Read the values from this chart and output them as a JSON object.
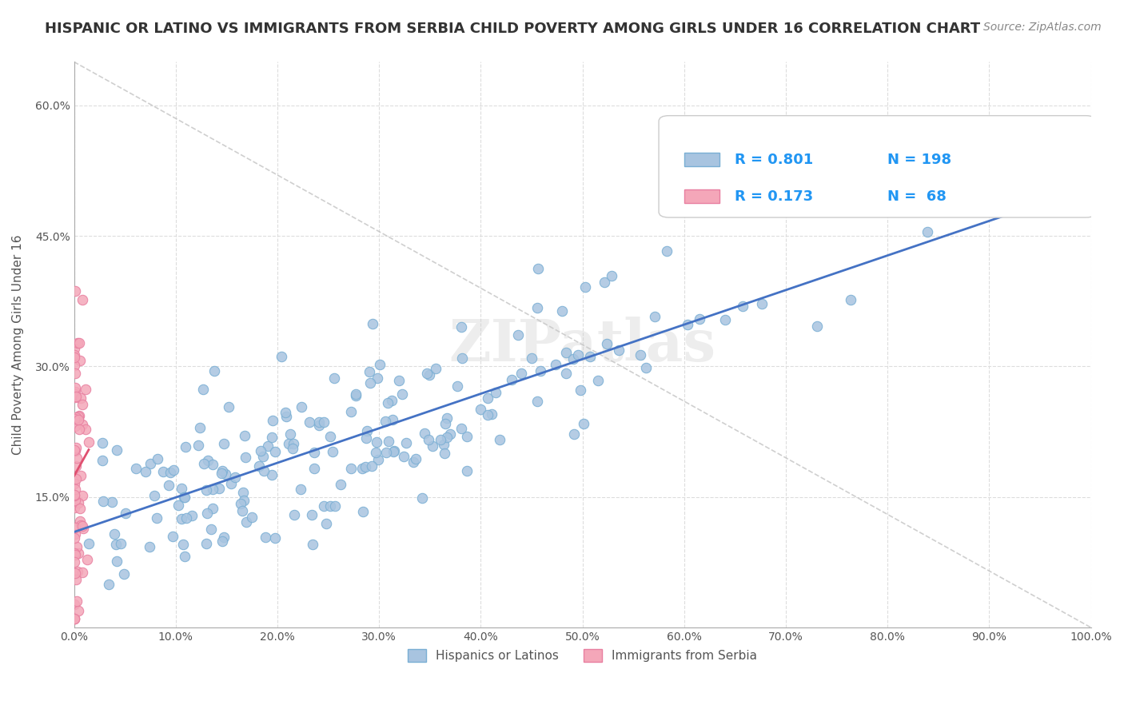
{
  "title": "HISPANIC OR LATINO VS IMMIGRANTS FROM SERBIA CHILD POVERTY AMONG GIRLS UNDER 16 CORRELATION CHART",
  "source_text": "Source: ZipAtlas.com",
  "xlabel": "",
  "ylabel": "Child Poverty Among Girls Under 16",
  "xlim": [
    0,
    1.0
  ],
  "ylim": [
    0,
    0.65
  ],
  "x_tick_labels": [
    "0.0%",
    "10.0%",
    "20.0%",
    "30.0%",
    "40.0%",
    "50.0%",
    "60.0%",
    "70.0%",
    "80.0%",
    "90.0%",
    "100.0%"
  ],
  "x_tick_values": [
    0.0,
    0.1,
    0.2,
    0.3,
    0.4,
    0.5,
    0.6,
    0.7,
    0.8,
    0.9,
    1.0
  ],
  "y_tick_labels": [
    "15.0%",
    "30.0%",
    "45.0%",
    "60.0%"
  ],
  "y_tick_values": [
    0.15,
    0.3,
    0.45,
    0.6
  ],
  "watermark": "ZIPatlas",
  "blue_R": 0.801,
  "blue_N": 198,
  "pink_R": 0.173,
  "pink_N": 68,
  "blue_scatter_color": "#a8c4e0",
  "blue_scatter_edge": "#7aafd4",
  "pink_scatter_color": "#f4a7b9",
  "pink_scatter_edge": "#e87fa0",
  "blue_line_color": "#4472c4",
  "pink_line_color": "#e05070",
  "legend_label_blue": "Hispanics or Latinos",
  "legend_label_pink": "Immigrants from Serbia",
  "background_color": "#ffffff",
  "grid_color": "#dddddd",
  "title_color": "#333333",
  "source_color": "#888888",
  "legend_R_color": "#2196f3",
  "legend_N_color": "#2196f3"
}
